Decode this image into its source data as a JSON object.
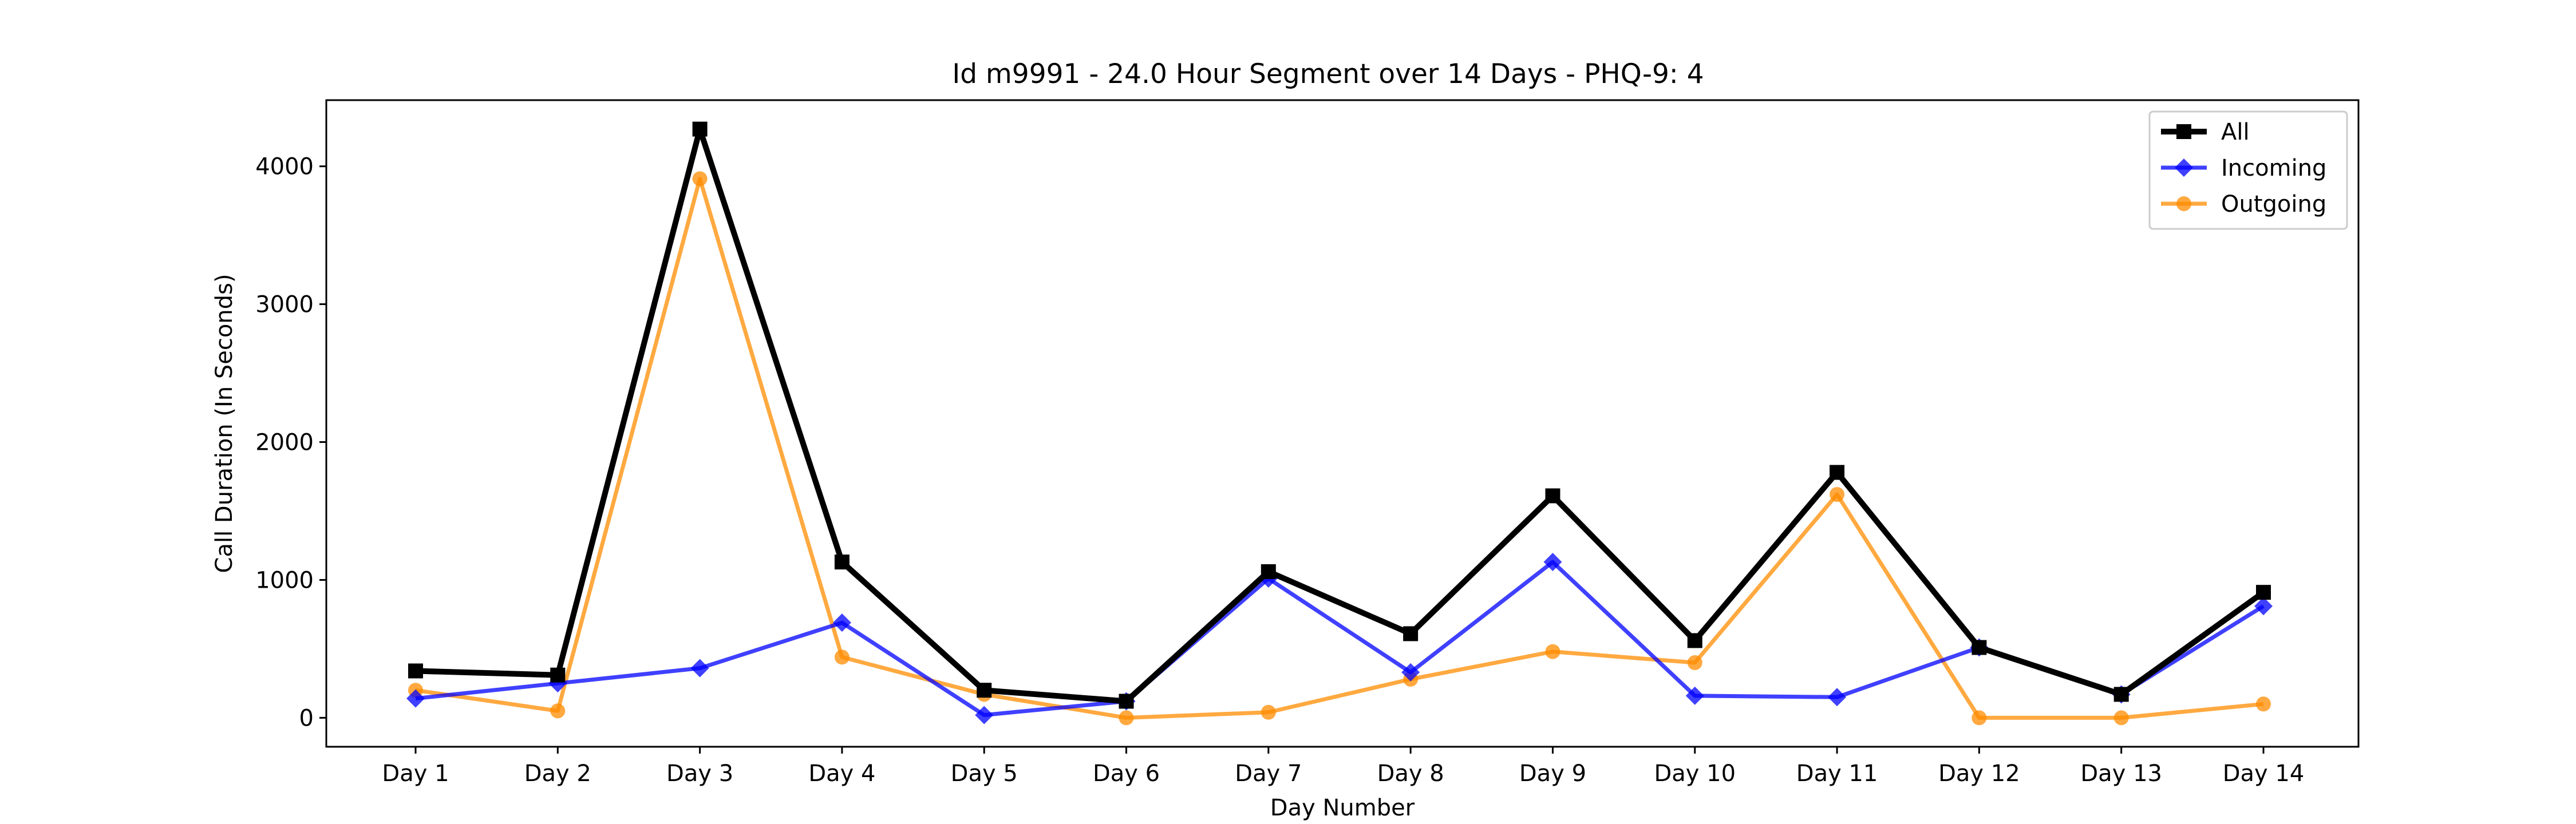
{
  "chart_data": {
    "type": "line",
    "title": "Id m9991 - 24.0 Hour Segment over 14 Days - PHQ-9: 4",
    "xlabel": "Day Number",
    "ylabel": "Call Duration (In Seconds)",
    "categories": [
      "Day 1",
      "Day 2",
      "Day 3",
      "Day 4",
      "Day 5",
      "Day 6",
      "Day 7",
      "Day 8",
      "Day 9",
      "Day 10",
      "Day 11",
      "Day 12",
      "Day 13",
      "Day 14"
    ],
    "ylim": [
      -210,
      4480
    ],
    "yticks": [
      0,
      1000,
      2000,
      3000,
      4000
    ],
    "grid": false,
    "legend_position": "top-right",
    "series": [
      {
        "name": "All",
        "color": "#000000",
        "marker": "square",
        "alpha": 1.0,
        "values": [
          340,
          310,
          4270,
          1130,
          200,
          120,
          1060,
          610,
          1610,
          560,
          1780,
          510,
          170,
          910
        ]
      },
      {
        "name": "Incoming",
        "color": "#0000ff",
        "marker": "diamond",
        "alpha": 0.75,
        "values": [
          140,
          250,
          360,
          690,
          20,
          120,
          1010,
          330,
          1130,
          160,
          150,
          510,
          170,
          810
        ]
      },
      {
        "name": "Outgoing",
        "color": "#ff8c00",
        "marker": "circle",
        "alpha": 0.75,
        "values": [
          200,
          50,
          3910,
          440,
          170,
          0,
          40,
          280,
          480,
          400,
          1620,
          0,
          0,
          100
        ]
      }
    ]
  }
}
